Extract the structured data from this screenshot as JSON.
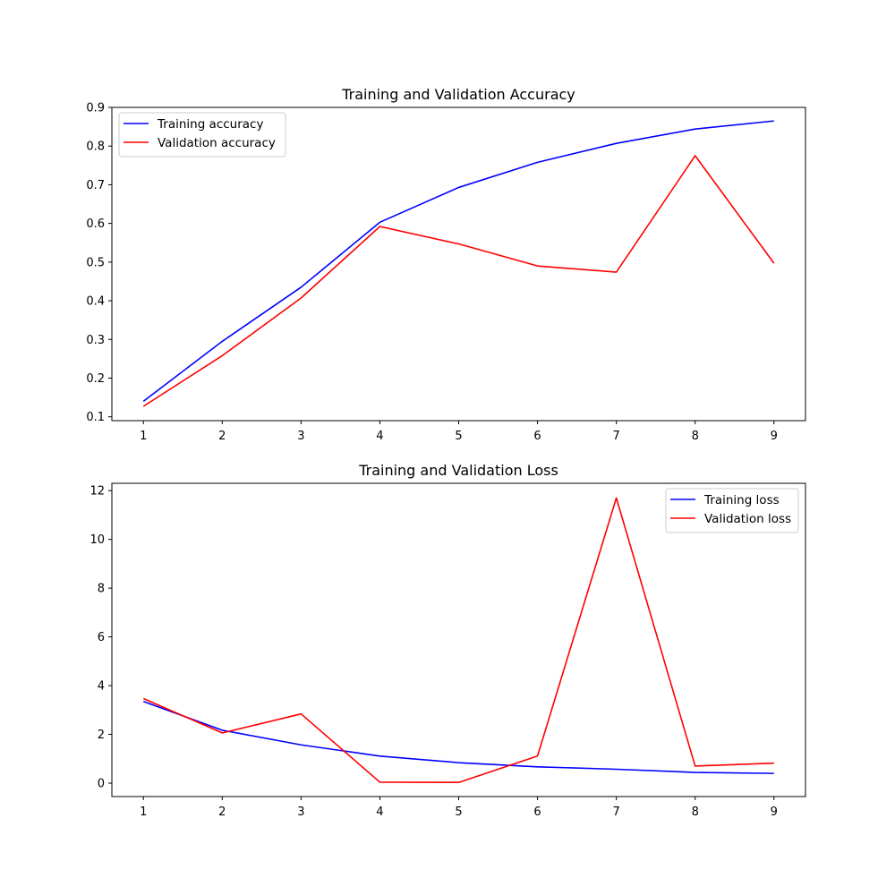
{
  "chart_data": [
    {
      "type": "line",
      "title": "Training and Validation Accuracy",
      "xlabel": "",
      "ylabel": "",
      "x": [
        1,
        2,
        3,
        4,
        5,
        6,
        7,
        8,
        9
      ],
      "xticks": [
        "1",
        "2",
        "3",
        "4",
        "5",
        "6",
        "7",
        "8",
        "9"
      ],
      "xlim": [
        0.6,
        9.4
      ],
      "ylim": [
        0.09,
        0.9
      ],
      "yticks": [
        "0.1",
        "0.2",
        "0.3",
        "0.4",
        "0.5",
        "0.6",
        "0.7",
        "0.8",
        "0.9"
      ],
      "ytick_values": [
        0.1,
        0.2,
        0.3,
        0.4,
        0.5,
        0.6,
        0.7,
        0.8,
        0.9
      ],
      "legend_position": "top-left",
      "grid": false,
      "series": [
        {
          "name": "Training accuracy",
          "color": "#0000ff",
          "values": [
            0.14,
            0.295,
            0.435,
            0.603,
            0.693,
            0.758,
            0.807,
            0.844,
            0.865
          ]
        },
        {
          "name": "Validation accuracy",
          "color": "#ff0000",
          "values": [
            0.127,
            0.258,
            0.407,
            0.592,
            0.547,
            0.49,
            0.474,
            0.775,
            0.497
          ]
        }
      ]
    },
    {
      "type": "line",
      "title": "Training and Validation Loss",
      "xlabel": "",
      "ylabel": "",
      "x": [
        1,
        2,
        3,
        4,
        5,
        6,
        7,
        8,
        9
      ],
      "xticks": [
        "1",
        "2",
        "3",
        "4",
        "5",
        "6",
        "7",
        "8",
        "9"
      ],
      "xlim": [
        0.6,
        9.4
      ],
      "ylim": [
        -0.55,
        12.3
      ],
      "yticks": [
        "0",
        "2",
        "4",
        "6",
        "8",
        "10",
        "12"
      ],
      "ytick_values": [
        0,
        2,
        4,
        6,
        8,
        10,
        12
      ],
      "legend_position": "top-right",
      "grid": false,
      "series": [
        {
          "name": "Training loss",
          "color": "#0000ff",
          "values": [
            3.35,
            2.17,
            1.57,
            1.11,
            0.84,
            0.67,
            0.57,
            0.44,
            0.4
          ]
        },
        {
          "name": "Validation loss",
          "color": "#ff0000",
          "values": [
            3.47,
            2.06,
            2.84,
            0.04,
            0.03,
            1.11,
            11.7,
            0.7,
            0.82
          ]
        }
      ]
    }
  ]
}
